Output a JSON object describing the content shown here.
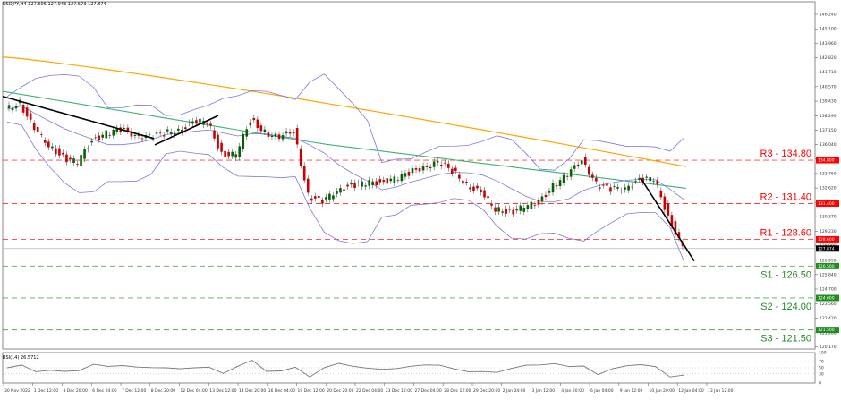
{
  "header": {
    "symbol_line": "USDJPY,H4  127.606 127.943 127.573 127.874"
  },
  "rsi": {
    "title": "RSI(14) 26.5712",
    "levels": [
      100,
      70,
      50,
      30,
      0
    ]
  },
  "colors": {
    "resistance": "#ff0000",
    "support": "#228b22",
    "ma_long": "#ffa500",
    "ma_mid": "#3cb371",
    "bollinger": "#7b7bdc",
    "bull_candle": "#006400",
    "bear_candle": "#cc0000",
    "trendline": "#000000",
    "current_price_tag": "#000000"
  },
  "chart_data": [
    {
      "type": "candlestick",
      "title": "USDJPY,H4",
      "ohlc_header": {
        "open": 127.606,
        "high": 127.943,
        "low": 127.573,
        "close": 127.874
      },
      "xlabel": "",
      "ylabel": "",
      "y_ticks": [
        146.24,
        145.1,
        143.96,
        142.82,
        141.71,
        140.57,
        139.43,
        138.29,
        137.15,
        136.04,
        134.9,
        133.76,
        132.62,
        131.48,
        130.37,
        129.23,
        128.09,
        126.95,
        125.84,
        124.7,
        123.56,
        122.42,
        121.28,
        120.17
      ],
      "ylim": [
        120.0,
        146.8
      ],
      "x_ticks": [
        "30 Nov 2022",
        "1 Dec 12:00",
        "3 Dec 20:00",
        "6 Dec 04:00",
        "7 Dec 12:00",
        "8 Dec 20:00",
        "12 Dec 04:00",
        "13 Dec 12:00",
        "14 Dec 20:00",
        "16 Dec 04:00",
        "19 Dec 12:00",
        "20 Dec 20:00",
        "22 Dec 04:00",
        "23 Dec 12:00",
        "27 Dec 04:00",
        "28 Dec 12:00",
        "29 Dec 20:00",
        "2 Jan 04:00",
        "3 Jan 12:00",
        "4 Jan 20:00",
        "6 Jan 04:00",
        "9 Jan 12:00",
        "10 Jan 20:00",
        "12 Jan 04:00",
        "13 Jan 12:00"
      ],
      "levels": [
        {
          "name": "R3",
          "label": "R3 - 134.80",
          "value": 134.8,
          "tag": "134.800",
          "kind": "resistance"
        },
        {
          "name": "R2",
          "label": "R2 - 131.40",
          "value": 131.4,
          "tag": "131.400",
          "kind": "resistance"
        },
        {
          "name": "R1",
          "label": "R1 - 128.60",
          "value": 128.6,
          "tag": "128.600",
          "kind": "resistance"
        },
        {
          "name": "S1",
          "label": "S1 - 126.50",
          "value": 126.5,
          "tag": "126.500",
          "kind": "support"
        },
        {
          "name": "S2",
          "label": "S2 - 124.00",
          "value": 124.0,
          "tag": "124.000",
          "kind": "support"
        },
        {
          "name": "S3",
          "label": "S3 - 121.50",
          "value": 121.5,
          "tag": "121.500",
          "kind": "support"
        }
      ],
      "current_price": {
        "value": 127.874,
        "tag": "127.874"
      },
      "series": [
        {
          "name": "Close (approx.)",
          "x_index": [
            0,
            4,
            8,
            12,
            16,
            20,
            24,
            28,
            32,
            36,
            40,
            44,
            48,
            52,
            56,
            60,
            64,
            68,
            72,
            76,
            80,
            84,
            88,
            92,
            96,
            100,
            104,
            108,
            112,
            116,
            120,
            124,
            128,
            132,
            136,
            140,
            144,
            148,
            152,
            156,
            160,
            164,
            168,
            172,
            176,
            180,
            184,
            188
          ],
          "values": [
            138.8,
            139.3,
            137.2,
            136.0,
            135.0,
            134.6,
            136.4,
            136.9,
            137.2,
            136.8,
            136.6,
            136.9,
            137.2,
            137.7,
            137.9,
            135.3,
            135.2,
            138.0,
            137.0,
            136.5,
            137.2,
            132.0,
            131.5,
            132.5,
            132.8,
            133.0,
            133.1,
            133.3,
            133.8,
            134.3,
            134.6,
            134.0,
            132.9,
            132.2,
            131.0,
            130.7,
            131.1,
            131.5,
            132.8,
            133.6,
            134.9,
            132.9,
            132.5,
            132.7,
            133.2,
            133.4,
            130.4,
            127.9
          ]
        },
        {
          "name": "MA (orange, long)",
          "values_desc": "declining from ~142.9 at left to ~134.3 at right"
        },
        {
          "name": "MA (green, mid)",
          "values_desc": "declining from ~140.2 at left to ~132.6 at right"
        },
        {
          "name": "Bollinger Bands",
          "values_desc": "blue envelope around price"
        }
      ],
      "trendlines": [
        {
          "from": [
            "30 Nov 2022",
            139.8
          ],
          "to": [
            "8 Dec 20:00",
            136.5
          ]
        },
        {
          "from": [
            "8 Dec 20:00",
            136.0
          ],
          "to": [
            "12 Dec 04:00",
            138.3
          ]
        },
        {
          "from": [
            "11 Jan",
            133.4
          ],
          "to": [
            "13 Jan 12:00",
            127.0
          ]
        }
      ],
      "grid": false,
      "legend": null
    },
    {
      "type": "line",
      "title": "RSI(14) 26.5712",
      "ylim": [
        0,
        100
      ],
      "y_ticks": [
        100,
        70,
        50,
        30,
        0
      ],
      "levels": [
        70,
        50,
        30
      ],
      "current": 26.5712
    }
  ]
}
